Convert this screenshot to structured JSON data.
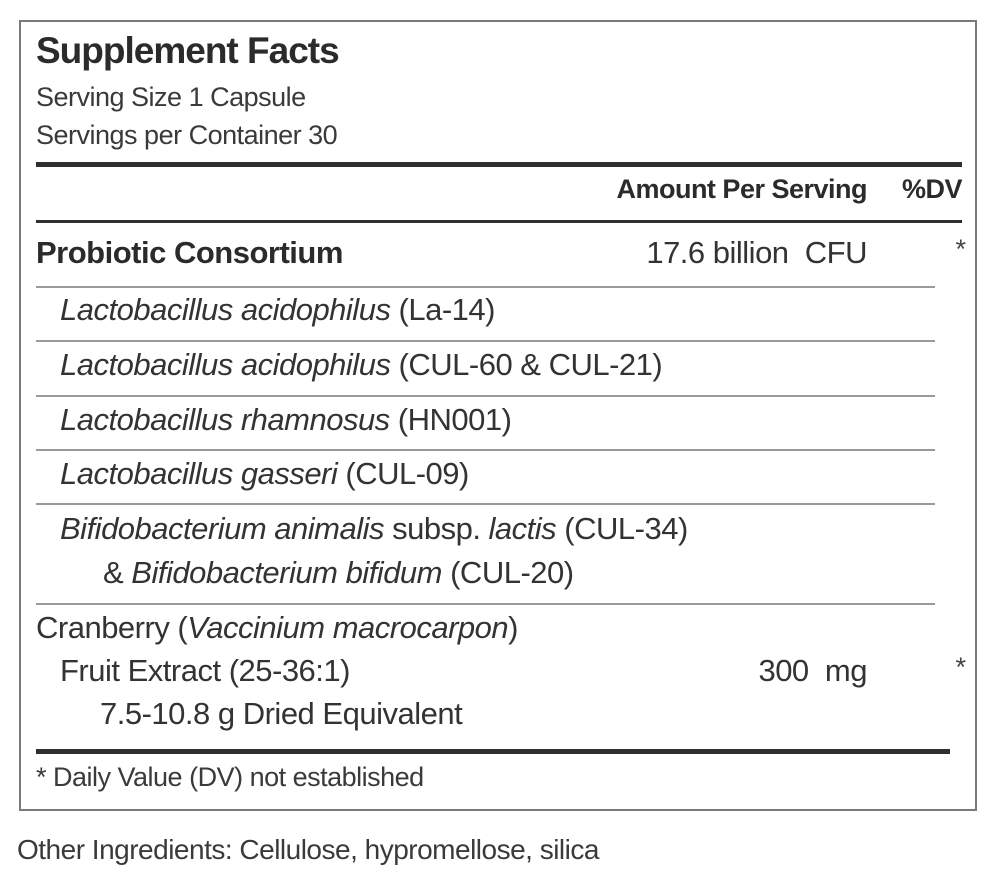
{
  "title": "Supplement Facts",
  "serving_size": "Serving Size 1 Capsule",
  "servings_per_container": "Servings per Container 30",
  "header": {
    "amount": "Amount Per Serving",
    "dv": "%DV"
  },
  "probiotic": {
    "name": "Probiotic Consortium",
    "amount": "17.6 billion",
    "unit": "CFU",
    "dv": "*"
  },
  "strains": [
    {
      "species": "Lactobacillus acidophilus",
      "strain": " (La-14)"
    },
    {
      "species": "Lactobacillus acidophilus",
      "strain": " (CUL-60 & CUL-21)"
    },
    {
      "species": "Lactobacillus rhamnosus",
      "strain": " (HN001)"
    },
    {
      "species": "Lactobacillus gasseri",
      "strain": " (CUL-09)"
    },
    {
      "species": "Bifidobacterium animalis",
      "sep": " subsp. ",
      "subspecies": "lactis",
      "strain": " (CUL-34)",
      "line2_prefix": "& ",
      "line2_species": "Bifidobacterium bifidum",
      "line2_strain": " (CUL-20)"
    }
  ],
  "cranberry": {
    "name_prefix": "Cranberry (",
    "latin": "Vaccinium macrocarpon",
    "name_suffix": ")",
    "line2": "Fruit Extract (25-36:1)",
    "line3": "7.5-10.8 g Dried Equivalent",
    "amount": "300",
    "unit": "mg",
    "dv": "*"
  },
  "footnote": "* Daily Value (DV) not established",
  "other_ingredients": "Other Ingredients: Cellulose, hypromellose, silica"
}
